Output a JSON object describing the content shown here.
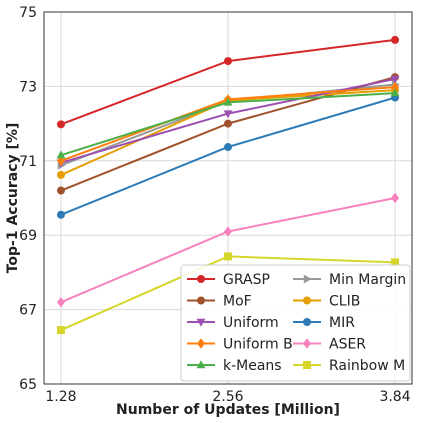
{
  "chart_data": {
    "type": "line",
    "xlabel": "Number of Updates [Million]",
    "ylabel": "Top-1 Accuracy [%]",
    "x": [
      1.28,
      2.56,
      3.84
    ],
    "x_tick_labels": [
      "1.28",
      "2.56",
      "3.84"
    ],
    "ylim": [
      65,
      75
    ],
    "y_ticks": [
      65,
      67,
      69,
      71,
      73,
      75
    ],
    "grid": true,
    "legend_position": "lower-right",
    "series": [
      {
        "name": "GRASP",
        "color": "#d62728",
        "marker": "circle",
        "values": [
          71.98,
          73.68,
          74.25
        ]
      },
      {
        "name": "Min Margin",
        "color": "#999999",
        "marker": "triangle-right",
        "values": [
          70.88,
          72.6,
          73.05
        ]
      },
      {
        "name": "MoF",
        "color": "#a0522d",
        "marker": "circle",
        "values": [
          70.2,
          72.0,
          73.25
        ]
      },
      {
        "name": "CLIB",
        "color": "#e69f00",
        "marker": "circle",
        "values": [
          70.62,
          72.62,
          72.9
        ]
      },
      {
        "name": "Uniform",
        "color": "#9b4fb0",
        "marker": "triangle-down",
        "values": [
          70.95,
          72.27,
          73.2
        ]
      },
      {
        "name": "MIR",
        "color": "#2c7bb6",
        "marker": "circle",
        "values": [
          69.55,
          71.37,
          72.7
        ]
      },
      {
        "name": "Uniform B",
        "color": "#ff7f0e",
        "marker": "diamond",
        "values": [
          71.0,
          72.65,
          72.98
        ]
      },
      {
        "name": "ASER",
        "color": "#f781bf",
        "marker": "diamond",
        "values": [
          67.2,
          69.1,
          70.0
        ]
      },
      {
        "name": "k-Means",
        "color": "#4daf4a",
        "marker": "triangle-up",
        "values": [
          71.15,
          72.57,
          72.82
        ]
      },
      {
        "name": "Rainbow M",
        "color": "#d6d62a",
        "marker": "square",
        "values": [
          66.45,
          68.43,
          68.27
        ]
      }
    ]
  }
}
